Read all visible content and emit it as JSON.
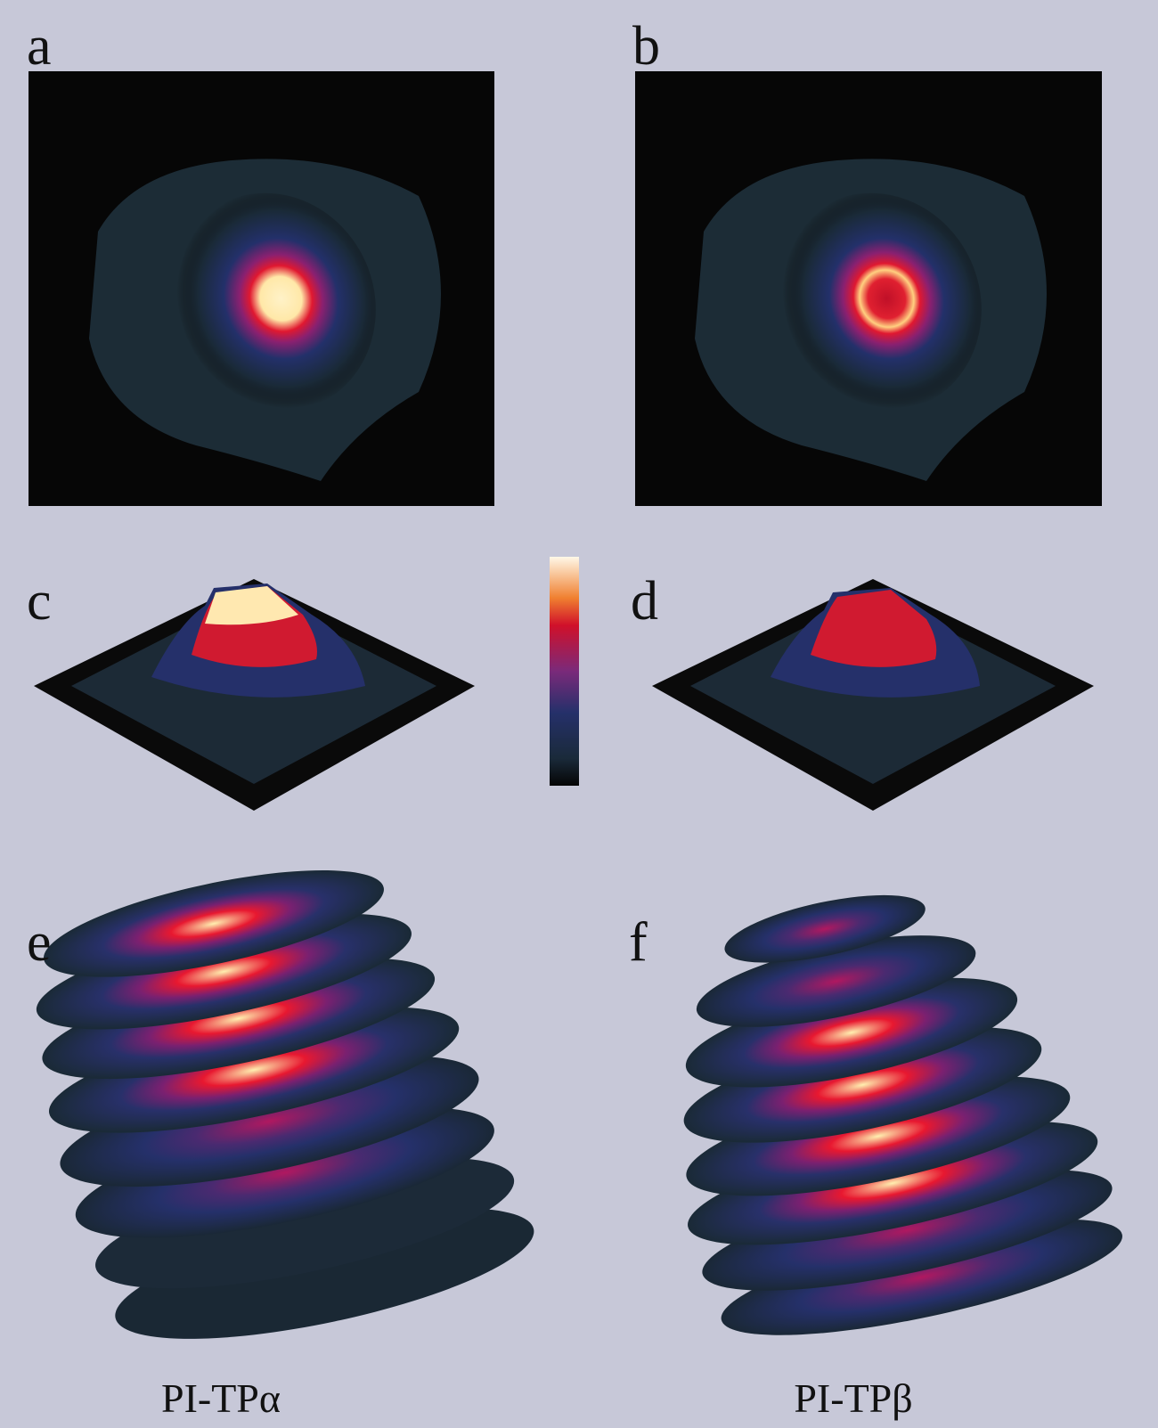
{
  "panels": [
    {
      "label": "a"
    },
    {
      "label": "b"
    },
    {
      "label": "c"
    },
    {
      "label": "d"
    },
    {
      "label": "e"
    },
    {
      "label": "f"
    }
  ],
  "captions": [
    "PI-TPα",
    "PI-TPβ"
  ]
}
